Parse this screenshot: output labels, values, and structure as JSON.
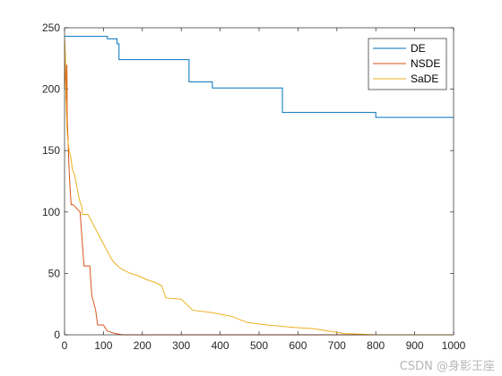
{
  "watermark": "CSDN @身影王座",
  "chart_data": {
    "type": "line",
    "title": "",
    "xlabel": "",
    "ylabel": "",
    "xlim": [
      0,
      1000
    ],
    "ylim": [
      0,
      250
    ],
    "xticks": [
      0,
      100,
      200,
      300,
      400,
      500,
      600,
      700,
      800,
      900,
      1000
    ],
    "yticks": [
      0,
      50,
      100,
      150,
      200,
      250
    ],
    "grid": false,
    "legend_position": "top-right",
    "series": [
      {
        "name": "DE",
        "color": "#0072BD",
        "step": true,
        "x": [
          0,
          110,
          135,
          140,
          320,
          380,
          560,
          800,
          1000
        ],
        "y": [
          243,
          241,
          237,
          224,
          206,
          201,
          181,
          177,
          177
        ]
      },
      {
        "name": "NSDE",
        "color": "#D95319",
        "step": false,
        "x": [
          0,
          2,
          4,
          6,
          7,
          9,
          11,
          14,
          17,
          19,
          22,
          40,
          50,
          65,
          70,
          80,
          85,
          100,
          110,
          130,
          150,
          1000
        ],
        "y": [
          200,
          229,
          190,
          220,
          175,
          160,
          140,
          120,
          106,
          106,
          106,
          100,
          56,
          56,
          32,
          20,
          8,
          8,
          3,
          1,
          0,
          0
        ]
      },
      {
        "name": "SaDE",
        "color": "#EDB120",
        "step": false,
        "x": [
          0,
          2,
          4,
          6,
          8,
          12,
          16,
          20,
          26,
          32,
          38,
          44,
          46,
          60,
          70,
          80,
          90,
          100,
          110,
          120,
          130,
          140,
          150,
          170,
          190,
          210,
          230,
          250,
          260,
          300,
          330,
          380,
          430,
          470,
          520,
          590,
          640,
          680,
          720,
          760,
          800,
          900,
          1000
        ],
        "y": [
          241,
          230,
          190,
          170,
          160,
          150,
          145,
          135,
          130,
          120,
          110,
          105,
          98,
          98,
          92,
          86,
          80,
          74,
          68,
          62,
          58,
          55,
          53,
          50,
          48,
          45,
          43,
          40,
          30,
          29,
          20,
          18,
          15,
          10,
          8,
          6,
          5,
          3,
          1,
          0.5,
          0,
          0,
          0
        ]
      }
    ]
  }
}
